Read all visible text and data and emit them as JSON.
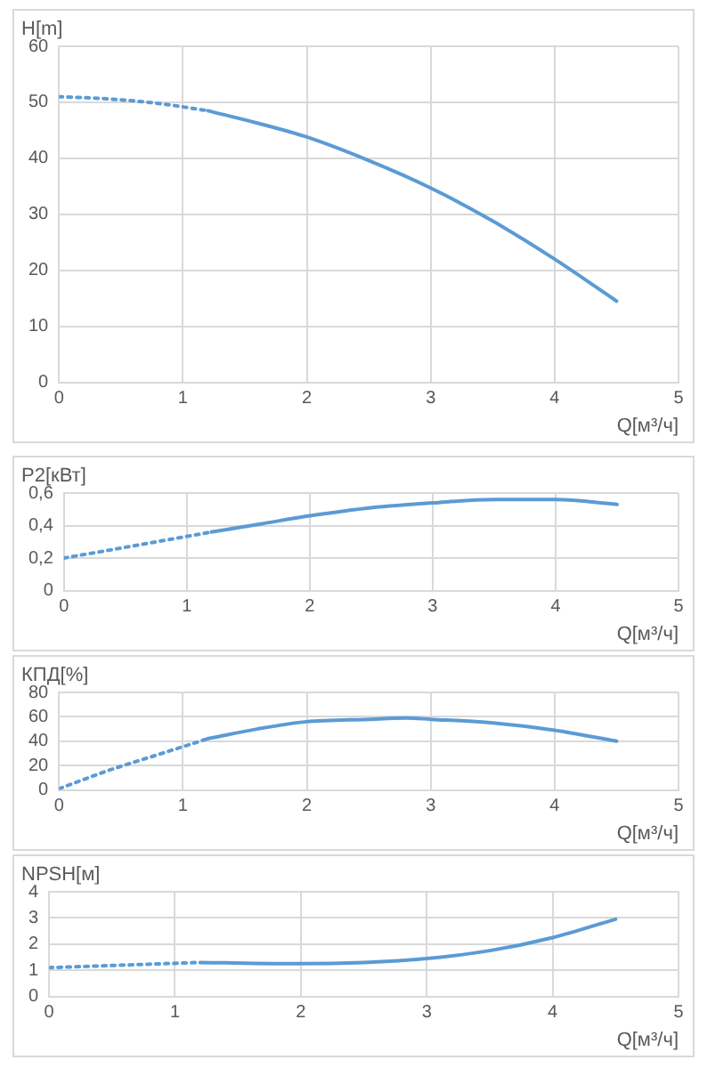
{
  "chart_data": [
    {
      "type": "line",
      "ylabel": "H[m]",
      "xlabel": "Q[м³/ч]",
      "xlim": [
        0,
        5
      ],
      "xticks": [
        0,
        1,
        2,
        3,
        4,
        5
      ],
      "ylim": [
        0,
        60
      ],
      "yticks": [
        0,
        10,
        20,
        30,
        40,
        50,
        60
      ],
      "grid": true,
      "legend": false,
      "marker": "none",
      "series": [
        {
          "color": "#5b9bd5",
          "line_style": "dotted",
          "x": [
            0,
            0.4,
            0.8,
            1.2
          ],
          "values": [
            51,
            50.6,
            49.8,
            48.5
          ]
        },
        {
          "color": "#5b9bd5",
          "line_style": "solid",
          "x": [
            1.2,
            1.6,
            2,
            2.5,
            3,
            3.5,
            4,
            4.5
          ],
          "values": [
            48.5,
            46.3,
            43.8,
            39.6,
            34.7,
            28.8,
            22,
            14.5
          ]
        }
      ]
    },
    {
      "type": "line",
      "ylabel": "P2[кВт]",
      "xlabel": "Q[м³/ч]",
      "xlim": [
        0,
        5
      ],
      "xticks": [
        0,
        1,
        2,
        3,
        4,
        5
      ],
      "ylim": [
        0,
        0.6
      ],
      "yticks": [
        0,
        {
          "value": 0.2,
          "label": "0,2"
        },
        {
          "value": 0.4,
          "label": "0,4"
        },
        {
          "value": 0.6,
          "label": "0,6"
        }
      ],
      "grid": true,
      "legend": false,
      "marker": "none",
      "series": [
        {
          "color": "#5b9bd5",
          "line_style": "dotted",
          "x": [
            0,
            0.6,
            1.2
          ],
          "values": [
            0.2,
            0.28,
            0.36
          ]
        },
        {
          "color": "#5b9bd5",
          "line_style": "solid",
          "x": [
            1.2,
            1.6,
            2,
            2.5,
            3,
            3.5,
            3.8,
            4,
            4.5
          ],
          "values": [
            0.36,
            0.41,
            0.46,
            0.51,
            0.54,
            0.56,
            0.56,
            0.56,
            0.53
          ]
        }
      ]
    },
    {
      "type": "line",
      "ylabel": "КПД[%]",
      "xlabel": "Q[м³/ч]",
      "xlim": [
        0,
        5
      ],
      "xticks": [
        0,
        1,
        2,
        3,
        4,
        5
      ],
      "ylim": [
        0,
        80
      ],
      "yticks": [
        0,
        20,
        40,
        60,
        80
      ],
      "grid": true,
      "legend": false,
      "marker": "none",
      "series": [
        {
          "color": "#5b9bd5",
          "line_style": "dotted",
          "x": [
            0,
            0.4,
            0.8,
            1.2
          ],
          "values": [
            1,
            16,
            29,
            42
          ]
        },
        {
          "color": "#5b9bd5",
          "line_style": "solid",
          "x": [
            1.2,
            1.6,
            2,
            2.5,
            2.8,
            3,
            3.5,
            4,
            4.5
          ],
          "values": [
            42,
            50,
            56,
            58,
            59,
            58,
            55,
            49,
            40
          ]
        }
      ]
    },
    {
      "type": "line",
      "ylabel": "NPSH[м]",
      "xlabel": "Q[м³/ч]",
      "xlim": [
        0,
        5
      ],
      "xticks": [
        0,
        1,
        2,
        3,
        4,
        5
      ],
      "ylim": [
        0,
        4
      ],
      "yticks": [
        0,
        1,
        2,
        3,
        4
      ],
      "grid": true,
      "legend": false,
      "marker": "none",
      "series": [
        {
          "color": "#5b9bd5",
          "line_style": "dotted",
          "x": [
            0,
            0.6,
            1.2
          ],
          "values": [
            1.1,
            1.2,
            1.3
          ]
        },
        {
          "color": "#5b9bd5",
          "line_style": "solid",
          "x": [
            1.2,
            2,
            2.5,
            3,
            3.5,
            4,
            4.5
          ],
          "values": [
            1.3,
            1.25,
            1.3,
            1.45,
            1.75,
            2.25,
            2.95
          ]
        }
      ]
    }
  ]
}
